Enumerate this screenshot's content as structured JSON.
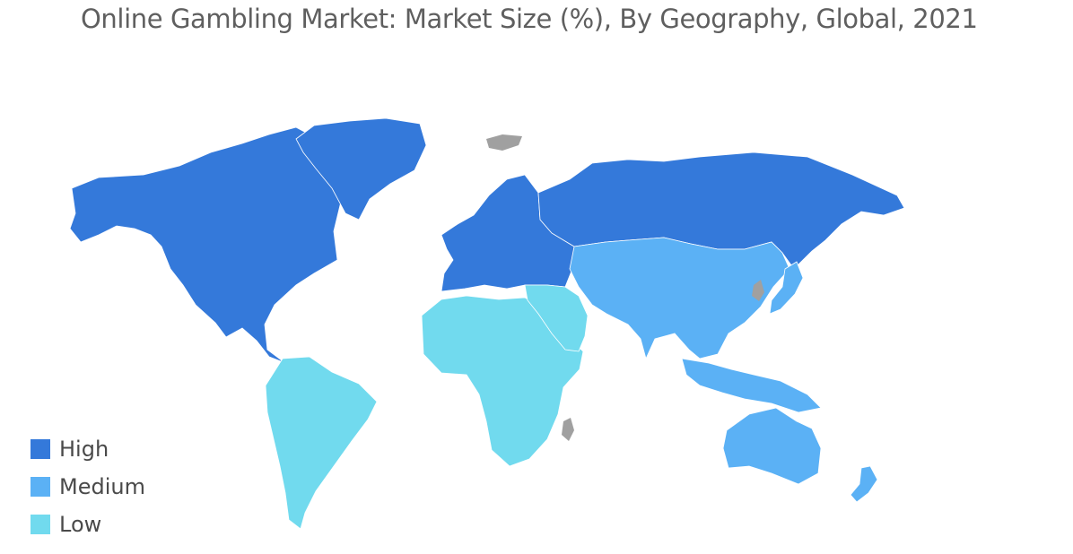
{
  "title": "Online Gambling Market: Market Size (%), By Geography, Global, 2021",
  "legend": [
    {
      "label": "High",
      "color": "#3479DA"
    },
    {
      "label": "Medium",
      "color": "#5BB1F5"
    },
    {
      "label": "Low",
      "color": "#71DAEE"
    }
  ],
  "no_data_color": "#A0A0A0",
  "regions": [
    {
      "name": "North America",
      "level": "High"
    },
    {
      "name": "Greenland",
      "level": "High"
    },
    {
      "name": "Europe",
      "level": "High"
    },
    {
      "name": "Russia",
      "level": "High"
    },
    {
      "name": "Asia",
      "level": "Medium"
    },
    {
      "name": "Southeast Asia",
      "level": "Medium"
    },
    {
      "name": "Japan",
      "level": "Medium"
    },
    {
      "name": "Australia",
      "level": "Medium"
    },
    {
      "name": "New Zealand",
      "level": "Medium"
    },
    {
      "name": "South America",
      "level": "Low"
    },
    {
      "name": "Africa",
      "level": "Low"
    },
    {
      "name": "Middle East",
      "level": "Low"
    }
  ]
}
